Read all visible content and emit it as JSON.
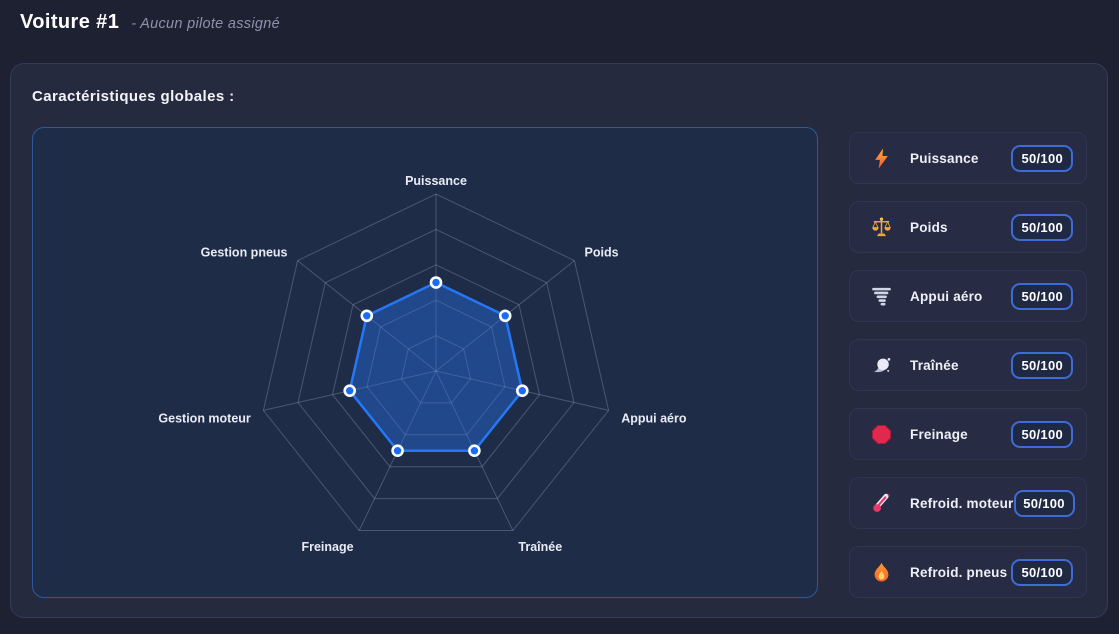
{
  "header": {
    "title": "Voiture #1",
    "subtitle": "- Aucun pilote assigné"
  },
  "panel": {
    "title": "Caractéristiques globales :"
  },
  "chart_data": {
    "type": "radar",
    "title": "Caractéristiques globales",
    "categories": [
      "Puissance",
      "Poids",
      "Appui aéro",
      "Traînée",
      "Freinage",
      "Gestion moteur",
      "Gestion pneus"
    ],
    "values": [
      50,
      50,
      50,
      50,
      50,
      50,
      50
    ],
    "max": 100,
    "rings": [
      20,
      40,
      60,
      80,
      100
    ],
    "grid": true,
    "legend_position": "none",
    "colors": {
      "line": "#2478f8",
      "fill": "rgba(36,118,248,0.38)",
      "point_fill": "#1b6cf2",
      "point_border": "#ffffff",
      "grid": "rgba(190,198,214,0.28)",
      "label": "#e8ebf3"
    }
  },
  "stats": {
    "items": [
      {
        "label": "Puissance",
        "value": "50/100",
        "icon": "lightning-icon"
      },
      {
        "label": "Poids",
        "value": "50/100",
        "icon": "scale-icon"
      },
      {
        "label": "Appui aéro",
        "value": "50/100",
        "icon": "tornado-icon"
      },
      {
        "label": "Traînée",
        "value": "50/100",
        "icon": "wind-icon"
      },
      {
        "label": "Freinage",
        "value": "50/100",
        "icon": "stop-icon"
      },
      {
        "label": "Refroid. moteur",
        "value": "50/100",
        "icon": "thermometer-icon"
      },
      {
        "label": "Refroid. pneus",
        "value": "50/100",
        "icon": "flame-icon"
      }
    ]
  },
  "theme": {
    "accent_blue": "#2478f8",
    "page_bg": "#1d2132",
    "panel_bg": "#252a3f",
    "chart_bg": "#1f2c48",
    "chart_border": "#2b5a9a",
    "badge_border": "#3f6cd4"
  }
}
